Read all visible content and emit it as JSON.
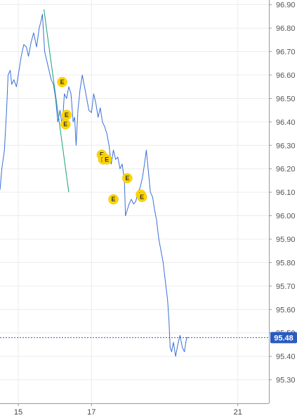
{
  "chart_data": {
    "type": "line",
    "title": "",
    "xlabel": "",
    "ylabel": "",
    "grid": true,
    "ylim": [
      95.2,
      96.92
    ],
    "xlim": [
      14.5,
      21.85
    ],
    "y_ticks": [
      "96.90",
      "96.80",
      "96.70",
      "96.60",
      "96.50",
      "96.40",
      "96.30",
      "96.20",
      "96.10",
      "96.00",
      "95.90",
      "95.80",
      "95.70",
      "95.60",
      "95.50",
      "95.40",
      "95.30"
    ],
    "x_ticks": [
      {
        "value": 15,
        "label": "15"
      },
      {
        "value": 17,
        "label": "17"
      },
      {
        "value": 21,
        "label": "21"
      }
    ],
    "colors": {
      "series": "#3a6fd8",
      "trendline": "#1a9e7a",
      "marker": "#ffd600",
      "last_price": "#2a5bbf",
      "grid": "#ececec",
      "axis": "#999999"
    },
    "last_price": {
      "value": 95.48,
      "label": "95.48"
    },
    "series": [
      {
        "points": [
          [
            14.5,
            96.11
          ],
          [
            14.55,
            96.2
          ],
          [
            14.62,
            96.28
          ],
          [
            14.68,
            96.45
          ],
          [
            14.72,
            96.6
          ],
          [
            14.78,
            96.62
          ],
          [
            14.82,
            96.56
          ],
          [
            14.88,
            96.58
          ],
          [
            14.95,
            96.55
          ],
          [
            15.02,
            96.62
          ],
          [
            15.08,
            96.68
          ],
          [
            15.15,
            96.73
          ],
          [
            15.22,
            96.72
          ],
          [
            15.28,
            96.68
          ],
          [
            15.35,
            96.74
          ],
          [
            15.42,
            96.78
          ],
          [
            15.5,
            96.72
          ],
          [
            15.57,
            96.8
          ],
          [
            15.62,
            96.83
          ],
          [
            15.66,
            96.86
          ],
          [
            15.72,
            96.7
          ],
          [
            15.78,
            96.66
          ],
          [
            15.84,
            96.62
          ],
          [
            15.9,
            96.58
          ],
          [
            15.96,
            96.56
          ],
          [
            16.02,
            96.5
          ],
          [
            16.08,
            96.4
          ],
          [
            16.14,
            96.45
          ],
          [
            16.2,
            96.38
          ],
          [
            16.26,
            96.52
          ],
          [
            16.32,
            96.5
          ],
          [
            16.38,
            96.55
          ],
          [
            16.44,
            96.52
          ],
          [
            16.5,
            96.4
          ],
          [
            16.54,
            96.42
          ],
          [
            16.58,
            96.3
          ],
          [
            16.63,
            96.45
          ],
          [
            16.69,
            96.54
          ],
          [
            16.75,
            96.6
          ],
          [
            16.81,
            96.55
          ],
          [
            16.87,
            96.5
          ],
          [
            16.93,
            96.45
          ],
          [
            17.0,
            96.44
          ],
          [
            17.06,
            96.52
          ],
          [
            17.12,
            96.48
          ],
          [
            17.18,
            96.42
          ],
          [
            17.24,
            96.46
          ],
          [
            17.3,
            96.4
          ],
          [
            17.36,
            96.38
          ],
          [
            17.42,
            96.35
          ],
          [
            17.48,
            96.3
          ],
          [
            17.54,
            96.22
          ],
          [
            17.6,
            96.28
          ],
          [
            17.66,
            96.24
          ],
          [
            17.72,
            96.25
          ],
          [
            17.78,
            96.2
          ],
          [
            17.84,
            96.22
          ],
          [
            17.9,
            96.15
          ],
          [
            17.93,
            96.0
          ],
          [
            17.97,
            96.02
          ],
          [
            18.03,
            96.05
          ],
          [
            18.09,
            96.07
          ],
          [
            18.15,
            96.05
          ],
          [
            18.21,
            96.06
          ],
          [
            18.27,
            96.1
          ],
          [
            18.33,
            96.12
          ],
          [
            18.39,
            96.16
          ],
          [
            18.45,
            96.22
          ],
          [
            18.5,
            96.28
          ],
          [
            18.55,
            96.2
          ],
          [
            18.61,
            96.1
          ],
          [
            18.67,
            96.08
          ],
          [
            18.72,
            96.03
          ],
          [
            18.78,
            95.98
          ],
          [
            18.84,
            95.9
          ],
          [
            18.9,
            95.85
          ],
          [
            18.96,
            95.8
          ],
          [
            19.02,
            95.72
          ],
          [
            19.08,
            95.64
          ],
          [
            19.12,
            95.55
          ],
          [
            19.15,
            95.44
          ],
          [
            19.19,
            95.42
          ],
          [
            19.24,
            95.46
          ],
          [
            19.3,
            95.4
          ],
          [
            19.36,
            95.45
          ],
          [
            19.42,
            95.49
          ],
          [
            19.48,
            95.44
          ],
          [
            19.54,
            95.42
          ],
          [
            19.6,
            95.48
          ],
          [
            19.66,
            95.48
          ]
        ]
      }
    ],
    "trendline": {
      "points": [
        [
          15.7,
          96.88
        ],
        [
          16.38,
          96.1
        ]
      ]
    },
    "markers": [
      {
        "x": 16.2,
        "y": 96.57,
        "label": "E"
      },
      {
        "x": 16.32,
        "y": 96.43,
        "label": "E"
      },
      {
        "x": 16.29,
        "y": 96.39,
        "label": "E"
      },
      {
        "x": 17.28,
        "y": 96.26,
        "label": "E"
      },
      {
        "x": 17.32,
        "y": 96.24,
        "label": "E"
      },
      {
        "x": 17.42,
        "y": 96.24,
        "label": "E"
      },
      {
        "x": 17.6,
        "y": 96.07,
        "label": "E"
      },
      {
        "x": 17.98,
        "y": 96.16,
        "label": "E"
      },
      {
        "x": 18.35,
        "y": 96.09,
        "label": "E"
      },
      {
        "x": 18.38,
        "y": 96.08,
        "label": "E"
      }
    ]
  }
}
